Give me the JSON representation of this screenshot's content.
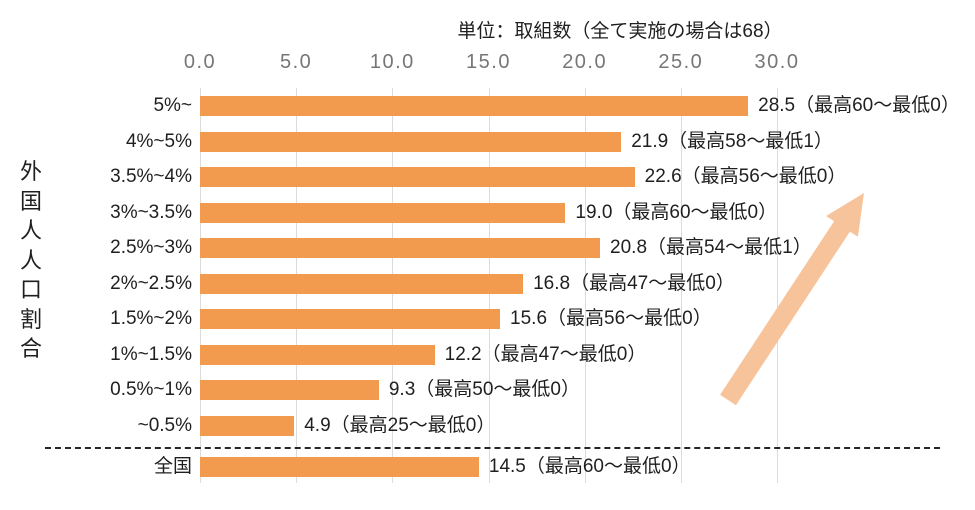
{
  "chart_data": {
    "type": "bar",
    "orientation": "horizontal",
    "title": "単位：取組数（全て実施の場合は68）",
    "y_axis_title": "外国人人口割合",
    "x_axis": {
      "min": 0,
      "max": 30,
      "tick_values": [
        0,
        5,
        10,
        15,
        20,
        25,
        30
      ],
      "tick_labels": [
        "0.0",
        "5.0",
        "10.0",
        "15.0",
        "20.0",
        "25.0",
        "30.0"
      ]
    },
    "grid": true,
    "legend": "none",
    "bar_color": "#F29A4D",
    "trend_arrow_color": "#F7C39A",
    "gridline_color": "#DBDBDB",
    "rows": [
      {
        "category": "5%~",
        "value": 28.5,
        "label": "28.5（最高60～最低0）"
      },
      {
        "category": "4%~5%",
        "value": 21.9,
        "label": "21.9（最高58～最低1）"
      },
      {
        "category": "3.5%~4%",
        "value": 22.6,
        "label": "22.6（最高56～最低0）"
      },
      {
        "category": "3%~3.5%",
        "value": 19.0,
        "label": "19.0（最高60～最低0）"
      },
      {
        "category": "2.5%~3%",
        "value": 20.8,
        "label": "20.8（最高54～最低1）"
      },
      {
        "category": "2%~2.5%",
        "value": 16.8,
        "label": "16.8（最高47～最低0）"
      },
      {
        "category": "1.5%~2%",
        "value": 15.6,
        "label": "15.6（最高56～最低0）"
      },
      {
        "category": "1%~1.5%",
        "value": 12.2,
        "label": "12.2（最高47～最低0）"
      },
      {
        "category": "0.5%~1%",
        "value": 9.3,
        "label": "9.3（最高50～最低0）"
      },
      {
        "category": "~0.5%",
        "value": 4.9,
        "label": "4.9（最高25～最低0）"
      },
      {
        "category": "全国",
        "value": 14.5,
        "label": "14.5（最高60～最低0）",
        "is_summary": true
      }
    ],
    "annotations": {
      "trend_arrow": "increasing-toward-upper-right",
      "separator": "dashed-line-above-national-summary-row"
    }
  }
}
